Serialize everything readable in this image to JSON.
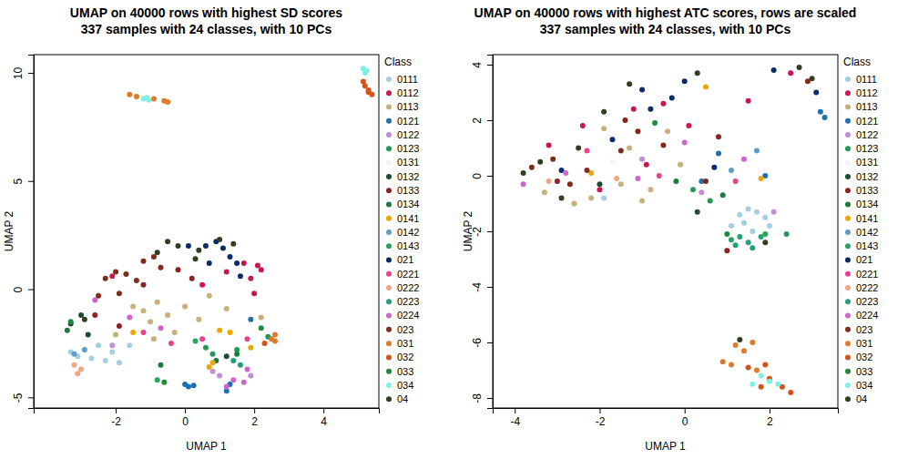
{
  "chart_data": [
    {
      "type": "scatter",
      "title": "UMAP on 40000 rows with highest SD scores",
      "subtitle": "337 samples with 24 classes, with 10 PCs",
      "x_label": "UMAP 1",
      "y_label": "UMAP 2",
      "legend_title": "Class",
      "legend": "right",
      "xlim": [
        -4.37,
        5.6
      ],
      "ylim": [
        -5.49,
        10.84
      ],
      "xticks": [
        -2,
        0,
        2,
        4
      ],
      "yticks": [
        -5,
        0,
        5,
        10
      ],
      "series": [
        {
          "name": "0111",
          "color": "#a6cee3",
          "x": [
            -3.1,
            -2.7,
            -2.3,
            -1.9,
            -2.5,
            -3.3,
            -1.6,
            -2.1
          ],
          "y": [
            -3.1,
            -3.2,
            -3.3,
            -3.4,
            -2.6,
            -2.9,
            -2.6,
            -2.9
          ]
        },
        {
          "name": "0112",
          "color": "#c8174e",
          "x": [
            1.9,
            2.1,
            2.2,
            1.7,
            1.2,
            0.5,
            2.0,
            -2.1
          ],
          "y": [
            0.5,
            1.1,
            0.9,
            1.2,
            0.8,
            0.2,
            -0.2,
            0.6
          ]
        },
        {
          "name": "0113",
          "color": "#c8b07a",
          "x": [
            -1.5,
            -1.2,
            -0.8,
            -0.5,
            0.0,
            0.4,
            -1.0,
            -0.3,
            1.2,
            2.2,
            -0.9,
            0.7,
            -2.0
          ],
          "y": [
            -0.8,
            -1.0,
            -0.6,
            -1.2,
            -0.8,
            -1.4,
            -1.5,
            -2.0,
            -0.9,
            -1.3,
            -2.3,
            -0.3,
            -2.1
          ]
        },
        {
          "name": "0121",
          "color": "#1f6fb2",
          "x": [
            0.0,
            0.1,
            0.25,
            1.2,
            1.3,
            1.9
          ],
          "y": [
            -4.4,
            -4.5,
            -4.45,
            -4.7,
            -4.4,
            -1.4
          ]
        },
        {
          "name": "0122",
          "color": "#c08fd8",
          "x": [
            -2.1,
            0.8,
            1.0,
            1.9
          ],
          "y": [
            -2.6,
            -3.8,
            -4.0,
            -4.0
          ]
        },
        {
          "name": "0123",
          "color": "#229a55",
          "x": [
            0.6,
            0.8,
            1.5,
            2.4
          ],
          "y": [
            -2.7,
            -3.0,
            -2.8,
            -2.2
          ]
        },
        {
          "name": "0131",
          "color": "#f4f4f4",
          "x": [
            0.6
          ],
          "y": [
            2.0
          ]
        },
        {
          "name": "0132",
          "color": "#1b4d2e",
          "x": [
            -3.3,
            -2.8,
            -3.0,
            1.2
          ],
          "y": [
            -1.6,
            -2.1,
            -1.2,
            -3.1
          ]
        },
        {
          "name": "0133",
          "color": "#8b2323",
          "x": [
            -1.9,
            -2.6,
            -1.2,
            0.2,
            -0.2
          ],
          "y": [
            -1.7,
            -1.2,
            0.2,
            0.5,
            0.9
          ]
        },
        {
          "name": "0134",
          "color": "#1b7a3e",
          "x": [
            -0.7,
            -3.4,
            0.9,
            1.5
          ],
          "y": [
            -3.5,
            -1.9,
            -3.3,
            -3.0
          ]
        },
        {
          "name": "0141",
          "color": "#f0a500",
          "x": [
            0.7,
            0.8,
            1.0,
            1.3,
            -1.5,
            1.9
          ],
          "y": [
            -3.6,
            -3.4,
            -1.9,
            -2.0,
            -2.0,
            -2.7
          ]
        },
        {
          "name": "0142",
          "color": "#5d9ec7",
          "x": [
            -3.2,
            -2.9
          ],
          "y": [
            -3.0,
            -2.8
          ]
        },
        {
          "name": "0143",
          "color": "#2ca25f",
          "x": [
            -0.8,
            0.3
          ],
          "y": [
            -4.2,
            -2.4
          ]
        },
        {
          "name": "021",
          "color": "#0b2c6b",
          "x": [
            0.1,
            0.6,
            0.9,
            1.1,
            1.3,
            0.7,
            1.6,
            1.5
          ],
          "y": [
            2.0,
            2.0,
            2.2,
            1.9,
            1.5,
            1.2,
            0.6,
            1.2
          ]
        },
        {
          "name": "0221",
          "color": "#e8418f",
          "x": [
            -1.2,
            0.5,
            1.8,
            -0.4
          ],
          "y": [
            -2.0,
            -2.3,
            -2.3,
            -2.5
          ]
        },
        {
          "name": "0222",
          "color": "#f4a582",
          "x": [
            -3.2,
            -3.0,
            -3.1
          ],
          "y": [
            -3.5,
            -3.7,
            -3.9
          ]
        },
        {
          "name": "0223",
          "color": "#21a07a",
          "x": [
            1.4,
            1.6
          ],
          "y": [
            -3.3,
            -3.5
          ]
        },
        {
          "name": "0224",
          "color": "#cc66cc",
          "x": [
            -1.6,
            -0.7,
            1.4,
            1.7,
            1.2,
            1.8,
            -2.6
          ],
          "y": [
            -1.3,
            -1.8,
            -4.2,
            -4.3,
            -4.5,
            -3.7,
            -0.5
          ]
        },
        {
          "name": "023",
          "color": "#7f2c1c",
          "x": [
            -2.0,
            -1.7,
            -1.4,
            -1.2,
            -0.9,
            -2.3,
            -2.5,
            -1.9,
            -0.7
          ],
          "y": [
            0.8,
            0.7,
            0.4,
            1.3,
            1.5,
            0.5,
            -0.3,
            -0.2,
            1.0
          ]
        },
        {
          "name": "031",
          "color": "#e07b2c",
          "x": [
            -1.6,
            -1.4,
            -0.9,
            -0.6,
            -0.5,
            2.6,
            2.5,
            2.6
          ],
          "y": [
            9.0,
            8.9,
            8.8,
            8.7,
            8.65,
            -2.1,
            -2.3,
            -2.4
          ]
        },
        {
          "name": "032",
          "color": "#d4541c",
          "x": [
            5.2,
            5.3,
            5.4,
            5.3,
            5.15,
            2.3
          ],
          "y": [
            9.4,
            9.2,
            9.0,
            9.1,
            9.6,
            -2.5
          ]
        },
        {
          "name": "033",
          "color": "#1e8a3c",
          "x": [
            -3.3,
            -0.6,
            2.2
          ],
          "y": [
            -1.5,
            -4.3,
            -1.8
          ]
        },
        {
          "name": "034",
          "color": "#80f0e0",
          "x": [
            -1.2,
            -1.05,
            -1.1,
            5.15,
            5.25,
            5.2
          ],
          "y": [
            8.8,
            8.75,
            8.85,
            10.2,
            10.1,
            10.0
          ]
        },
        {
          "name": "04",
          "color": "#2f4020",
          "x": [
            -0.5,
            -0.2,
            0.4,
            1.0,
            1.4,
            -0.8,
            0.3,
            -2.9
          ],
          "y": [
            2.2,
            2.0,
            1.8,
            2.3,
            2.1,
            1.7,
            1.4,
            -1.4
          ]
        }
      ]
    },
    {
      "type": "scatter",
      "title": "UMAP on 40000 rows with highest ATC scores, rows are scaled",
      "subtitle": "337 samples with 24 classes, with 10 PCs",
      "x_label": "UMAP 1",
      "y_label": "UMAP 2",
      "legend_title": "Class",
      "legend": "right",
      "xlim": [
        -4.52,
        3.61
      ],
      "ylim": [
        -8.36,
        4.36
      ],
      "xticks": [
        -4,
        -2,
        0,
        2
      ],
      "yticks": [
        -8,
        -6,
        -4,
        -2,
        0,
        2,
        4
      ],
      "series": [
        {
          "name": "0111",
          "color": "#a6cee3",
          "x": [
            1.3,
            1.5,
            1.7,
            1.9,
            1.4,
            2.0,
            1.1,
            -2.6,
            -1.9,
            1.6
          ],
          "y": [
            -1.4,
            -1.2,
            -1.3,
            -1.5,
            -1.7,
            -1.8,
            -1.8,
            -1.0,
            -0.8,
            -2.0
          ]
        },
        {
          "name": "0112",
          "color": "#c8174e",
          "x": [
            -3.2,
            -2.4,
            -1.2,
            -0.5,
            0.1,
            1.5,
            2.5,
            -0.9,
            -2.0
          ],
          "y": [
            1.1,
            1.8,
            2.4,
            2.6,
            1.8,
            2.7,
            3.7,
            0.4,
            -0.5
          ]
        },
        {
          "name": "0113",
          "color": "#c8b07a",
          "x": [
            -1.9,
            -1.3,
            -0.8,
            -2.2,
            -2.6,
            -1.5,
            -0.1,
            -3.3,
            -1.0,
            -0.4
          ],
          "y": [
            1.7,
            1.0,
            -0.5,
            -0.8,
            -1.0,
            -0.3,
            0.4,
            -0.6,
            -0.9,
            1.6
          ]
        },
        {
          "name": "0121",
          "color": "#1f6fb2",
          "x": [
            0.8,
            0.4,
            1.9,
            3.2,
            3.3
          ],
          "y": [
            0.8,
            -0.2,
            0.0,
            2.3,
            2.1
          ]
        },
        {
          "name": "0122",
          "color": "#c08fd8",
          "x": [
            -1.0,
            0.4,
            2.1
          ],
          "y": [
            0.6,
            -0.6,
            -1.3
          ]
        },
        {
          "name": "0123",
          "color": "#229a55",
          "x": [
            0.2,
            0.6,
            2.4
          ],
          "y": [
            -0.5,
            -0.9,
            -2.1
          ]
        },
        {
          "name": "0131",
          "color": "#f4f4f4",
          "x": [
            -1.7
          ],
          "y": [
            0.5
          ]
        },
        {
          "name": "0132",
          "color": "#1b4d2e",
          "x": [
            -2.0,
            0.3
          ],
          "y": [
            -0.3,
            -1.3
          ]
        },
        {
          "name": "0133",
          "color": "#8b2323",
          "x": [
            -3.0,
            -1.4,
            0.8,
            1.0
          ],
          "y": [
            -0.2,
            2.0,
            1.4,
            -2.7
          ]
        },
        {
          "name": "0134",
          "color": "#1b7a3e",
          "x": [
            -0.2,
            0.9
          ],
          "y": [
            -0.2,
            -0.7
          ]
        },
        {
          "name": "0141",
          "color": "#f0a500",
          "x": [
            0.5,
            1.8,
            -2.2
          ],
          "y": [
            3.2,
            -0.1,
            0.1
          ]
        },
        {
          "name": "0142",
          "color": "#5d9ec7",
          "x": [
            1.1,
            1.7
          ],
          "y": [
            0.2,
            0.9
          ]
        },
        {
          "name": "0143",
          "color": "#2ca25f",
          "x": [
            1.9,
            1.1
          ],
          "y": [
            -2.1,
            -2.3
          ]
        },
        {
          "name": "021",
          "color": "#0b2c6b",
          "x": [
            -1.0,
            -0.8,
            0.0,
            -0.3,
            -2.9,
            -1.7,
            2.1,
            3.1,
            0.7
          ],
          "y": [
            3.1,
            2.4,
            3.4,
            2.8,
            0.2,
            1.3,
            3.8,
            3.0,
            0.3
          ]
        },
        {
          "name": "0221",
          "color": "#e8418f",
          "x": [
            -2.3,
            -0.6,
            1.2
          ],
          "y": [
            0.9,
            0.0,
            -0.2
          ]
        },
        {
          "name": "0222",
          "color": "#f4a582",
          "x": [
            -3.2,
            -1.6
          ],
          "y": [
            -0.2,
            -0.1
          ]
        },
        {
          "name": "0223",
          "color": "#21a07a",
          "x": [
            1.3,
            1.5,
            1.8,
            1.2,
            1.6
          ],
          "y": [
            -2.2,
            -2.4,
            -2.2,
            -2.5,
            -2.6
          ]
        },
        {
          "name": "0224",
          "color": "#cc66cc",
          "x": [
            -3.8,
            -2.8,
            -1.1,
            1.4,
            0.0
          ],
          "y": [
            -0.3,
            0.1,
            -0.1,
            0.6,
            1.2
          ]
        },
        {
          "name": "023",
          "color": "#7f2c1c",
          "x": [
            -3.6,
            -3.1,
            -2.3,
            -1.5,
            -0.5,
            -1.1,
            -2.7,
            0.5,
            2.9
          ],
          "y": [
            0.3,
            0.6,
            0.2,
            0.9,
            1.1,
            1.6,
            -0.3,
            -0.2,
            3.4
          ]
        },
        {
          "name": "031",
          "color": "#e07b2c",
          "x": [
            1.2,
            1.4,
            1.6,
            0.9,
            1.1,
            1.7
          ],
          "y": [
            -6.1,
            -6.3,
            -6.0,
            -6.7,
            -6.8,
            -7.0
          ]
        },
        {
          "name": "032",
          "color": "#d4541c",
          "x": [
            1.8,
            2.0,
            2.3,
            2.5,
            1.5,
            1.9
          ],
          "y": [
            -7.6,
            -7.3,
            -7.6,
            -7.8,
            -6.9,
            -6.8
          ]
        },
        {
          "name": "033",
          "color": "#1e8a3c",
          "x": [
            -0.7,
            1.0
          ],
          "y": [
            1.9,
            -2.1
          ]
        },
        {
          "name": "034",
          "color": "#80f0e0",
          "x": [
            1.8,
            2.0,
            1.6,
            2.2
          ],
          "y": [
            -7.2,
            -7.4,
            -7.5,
            -7.5
          ]
        },
        {
          "name": "04",
          "color": "#2f4020",
          "x": [
            -3.8,
            -3.4,
            -2.5,
            -1.9,
            -1.3,
            0.3,
            -2.9,
            2.7,
            3.0,
            1.9,
            1.3
          ],
          "y": [
            0.1,
            0.5,
            1.0,
            2.3,
            3.3,
            3.7,
            -0.8,
            3.9,
            3.5,
            -2.4,
            -5.9
          ]
        }
      ]
    }
  ]
}
